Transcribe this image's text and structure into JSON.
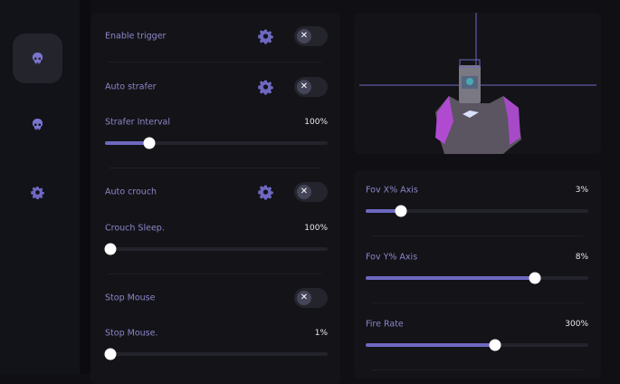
{
  "accent": "#6e68c0",
  "sidebar": {
    "items": [
      {
        "icon": "skull-icon",
        "active": true
      },
      {
        "icon": "skull-icon",
        "active": false
      },
      {
        "icon": "gear-icon",
        "active": false
      }
    ]
  },
  "left": {
    "enable_trigger": {
      "label": "Enable trigger",
      "on": false
    },
    "auto_strafer": {
      "label": "Auto strafer",
      "on": false
    },
    "strafer_interval": {
      "label": "Strafer Interval",
      "value": "100%",
      "fill": 20
    },
    "auto_crouch": {
      "label": "Auto crouch",
      "on": false
    },
    "crouch_sleep": {
      "label": "Crouch Sleep.",
      "value": "100%",
      "fill": 0
    },
    "stop_mouse": {
      "label": "Stop Mouse",
      "on": false
    },
    "stop_mouse_slider": {
      "label": "Stop Mouse.",
      "value": "1%",
      "fill": 0
    }
  },
  "right": {
    "fov_x": {
      "label": "Fov X% Axis",
      "value": "3%",
      "fill": 16
    },
    "fov_y": {
      "label": "Fov Y% Axis",
      "value": "8%",
      "fill": 76
    },
    "fire_rate": {
      "label": "Fire Rate",
      "value": "300%",
      "fill": 58
    }
  },
  "toggle_glyph": "✕"
}
